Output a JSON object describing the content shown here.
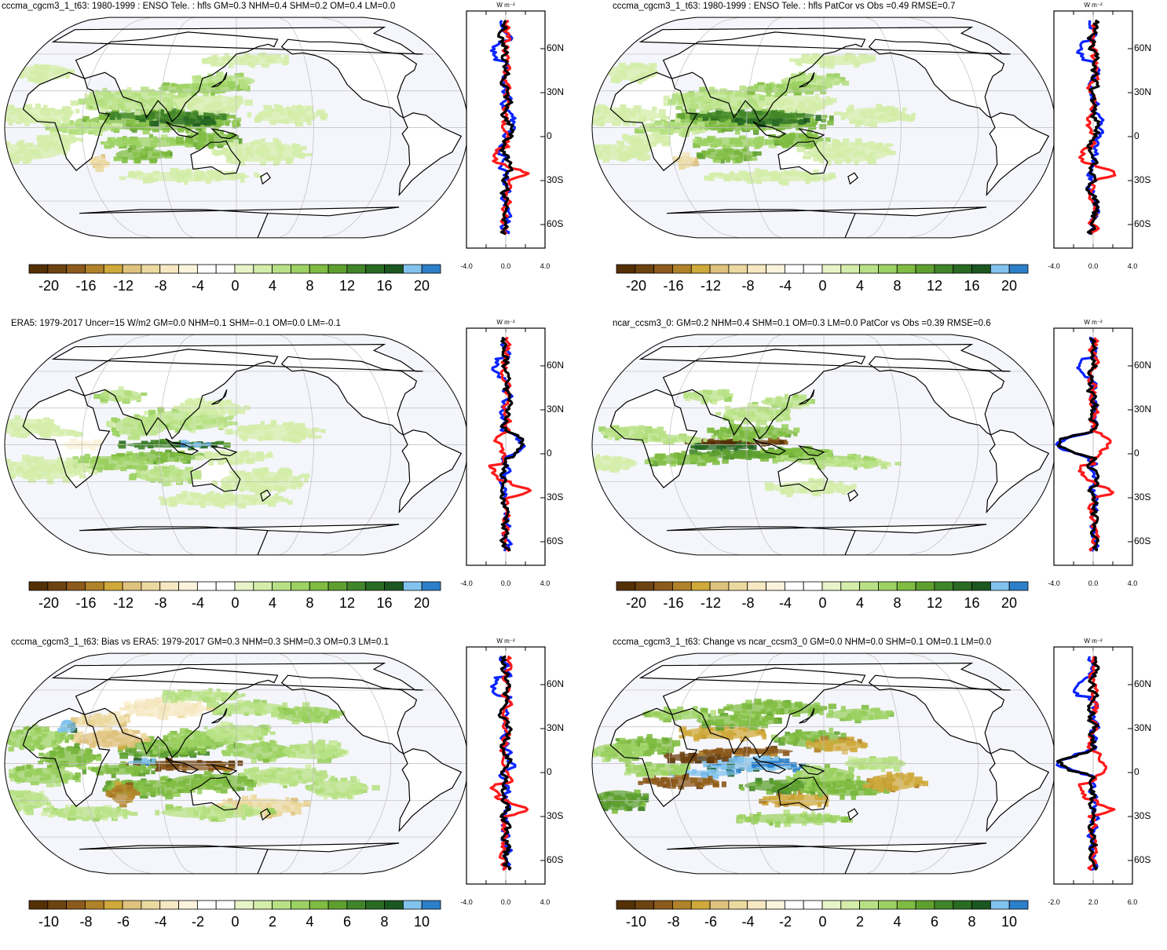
{
  "figure": {
    "colormap": [
      "#543005",
      "#6e4312",
      "#8c5a1c",
      "#b08229",
      "#cfa93b",
      "#dfc27d",
      "#ecd9a0",
      "#f6e8c3",
      "#fbf3dc",
      "#ffffff",
      "#ffffff",
      "#e8f4c8",
      "#d4edaa",
      "#b8e186",
      "#9cd163",
      "#7fbc41",
      "#5ea030",
      "#41852a",
      "#2a6b24",
      "#1b5720",
      "#82c3ed",
      "#2c7fc9"
    ],
    "ocean_bg": "#f5f6fc",
    "land_bg": "#ffffff",
    "line_colors": {
      "model": "#0b24ff",
      "obs": "#ff1a1a",
      "diff": "#000000"
    }
  },
  "panels": [
    {
      "id": "p1",
      "title": "cccma_cgcm3_1_t63: 1980-1999 : ENSO Tele. : hfls GM=0.3 NHM=0.4 SHM=0.2 OM=0.4 LM=0.0",
      "colorbar_labels": [
        "-20",
        "-16",
        "-12",
        "-8",
        "-4",
        "0",
        "4",
        "8",
        "12",
        "16",
        "20"
      ],
      "side": {
        "unit": "W m⁻²",
        "lat_labels": [
          "60N",
          "30N",
          "0",
          "30S",
          "60S"
        ],
        "x_labels": [
          "-4.0",
          "0.0",
          "4.0"
        ]
      },
      "pattern": "enso_model"
    },
    {
      "id": "p2",
      "title": "cccma_cgcm3_1_t63: 1980-1999 : ENSO Tele. : hfls PatCor vs Obs =0.49 RMSE=0.7",
      "colorbar_labels": [
        "-20",
        "-16",
        "-12",
        "-8",
        "-4",
        "0",
        "4",
        "8",
        "12",
        "16",
        "20"
      ],
      "side": {
        "unit": "W m⁻²",
        "lat_labels": [
          "60N",
          "30N",
          "0",
          "30S",
          "60S"
        ],
        "x_labels": [
          "-4.0",
          "0.0",
          "4.0"
        ]
      },
      "pattern": "enso_model"
    },
    {
      "id": "p3",
      "title": "ERA5: 1979-2017 Uncer=15 W/m2 GM=0.0 NHM=0.1 SHM=-0.1 OM=0.0 LM=-0.1",
      "colorbar_labels": [
        "-20",
        "-16",
        "-12",
        "-8",
        "-4",
        "0",
        "4",
        "8",
        "12",
        "16",
        "20"
      ],
      "side": {
        "unit": "W m⁻²",
        "lat_labels": [
          "60N",
          "30N",
          "0",
          "30S",
          "60S"
        ],
        "x_labels": [
          "-4.0",
          "0.0",
          "4.0"
        ]
      },
      "pattern": "enso_obs"
    },
    {
      "id": "p4",
      "title": "ncar_ccsm3_0: GM=0.2 NHM=0.4 SHM=0.1 OM=0.3 LM=0.0 PatCor vs Obs =0.39 RMSE=0.6",
      "colorbar_labels": [
        "-20",
        "-16",
        "-12",
        "-8",
        "-4",
        "0",
        "4",
        "8",
        "12",
        "16",
        "20"
      ],
      "side": {
        "unit": "W m⁻²",
        "lat_labels": [
          "60N",
          "30N",
          "0",
          "30S",
          "60S"
        ],
        "x_labels": [
          "-4.0",
          "0.0",
          "4.0"
        ]
      },
      "pattern": "enso_ncar"
    },
    {
      "id": "p5",
      "title": "cccma_cgcm3_1_t63: Bias vs ERA5: 1979-2017 GM=0.3 NHM=0.3 SHM=0.3 OM=0.3 LM=0.1",
      "colorbar_labels": [
        "-10",
        "-8",
        "-6",
        "-4",
        "-2",
        "0",
        "2",
        "4",
        "6",
        "8",
        "10"
      ],
      "side": {
        "unit": "W m⁻²",
        "lat_labels": [
          "60N",
          "30N",
          "0",
          "30S",
          "60S"
        ],
        "x_labels": [
          "-4.0",
          "0.0",
          "4.0"
        ]
      },
      "pattern": "bias"
    },
    {
      "id": "p6",
      "title": "cccma_cgcm3_1_t63: Change vs ncar_ccsm3_0 GM=0.0 NHM=0.0 SHM=0.1 OM=0.1 LM=0.0",
      "colorbar_labels": [
        "-10",
        "-8",
        "-6",
        "-4",
        "-2",
        "0",
        "2",
        "4",
        "6",
        "8",
        "10"
      ],
      "side": {
        "unit": "W m⁻²",
        "lat_labels": [
          "60N",
          "30N",
          "0",
          "30S",
          "60S"
        ],
        "x_labels": [
          "-2.0",
          "2.0",
          "6.0"
        ]
      },
      "pattern": "change"
    }
  ]
}
